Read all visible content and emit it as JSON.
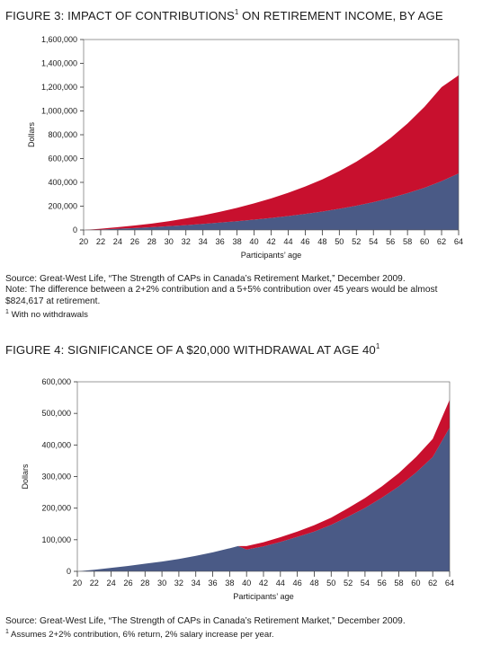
{
  "figure3": {
    "title": "FIGURE 3: IMPACT OF CONTRIBUTIONS",
    "title_sup": "1",
    "title_rest": " ON RETIREMENT INCOME, BY AGE",
    "source": "Source: Great-West Life, “The Strength of CAPs in Canada’s Retirement Market,” December 2009.",
    "note_line1": "Note: The difference between a 2+2% contribution and a 5+5% contribution over 45 years would be almost",
    "note_line2": "$824,617 at retirement.",
    "footnote_mark": "1",
    "footnote": " With no withdrawals"
  },
  "figure4": {
    "title": "FIGURE 4: SIGNIFICANCE OF A $20,000 WITHDRAWAL AT AGE 40",
    "title_sup": "1",
    "source": "Source: Great-West Life, “The Strength of CAPs in Canada’s Retirement Market,” December 2009.",
    "footnote_mark": "1",
    "footnote": " Assumes 2+2% contribution, 6% return, 2% salary increase per year."
  },
  "chart_data": [
    {
      "type": "area",
      "title": "FIGURE 3: IMPACT OF CONTRIBUTIONS ON RETIREMENT INCOME, BY AGE",
      "xlabel": "Participants’ age",
      "ylabel": "Dollars",
      "xlim": [
        20,
        64
      ],
      "ylim": [
        0,
        1600000
      ],
      "yticks": [
        0,
        200000,
        400000,
        600000,
        800000,
        1000000,
        1200000,
        1400000,
        1600000
      ],
      "ytick_labels": [
        "0",
        "200,000",
        "400,000",
        "600,000",
        "800,000",
        "1,000,000",
        "1,200,000",
        "1,400,000",
        "1,600,000"
      ],
      "xticks": [
        20,
        22,
        24,
        26,
        28,
        30,
        32,
        34,
        36,
        38,
        40,
        42,
        44,
        46,
        48,
        50,
        52,
        54,
        56,
        58,
        60,
        62,
        64
      ],
      "grid": false,
      "stacked": true,
      "x": [
        20,
        22,
        24,
        26,
        28,
        30,
        32,
        34,
        36,
        38,
        40,
        42,
        44,
        46,
        48,
        50,
        52,
        54,
        56,
        58,
        60,
        62,
        64
      ],
      "series": [
        {
          "color": "#4a5a86",
          "values": [
            0,
            4000,
            10000,
            16000,
            24000,
            32000,
            41000,
            51000,
            62000,
            74000,
            87000,
            101000,
            117000,
            135000,
            155000,
            178000,
            204000,
            234000,
            269000,
            309000,
            355000,
            410000,
            475000
          ]
        },
        {
          "color": "#c8102e",
          "values": [
            0,
            6000,
            14000,
            22000,
            30000,
            42000,
            56000,
            72000,
            91000,
            112000,
            137000,
            164000,
            195000,
            230000,
            270000,
            316000,
            370000,
            432000,
            503000,
            585000,
            680000,
            790000,
            825000
          ]
        }
      ]
    },
    {
      "type": "area",
      "title": "FIGURE 4: SIGNIFICANCE OF A $20,000 WITHDRAWAL AT AGE 40",
      "xlabel": "Participants’ age",
      "ylabel": "Dollars",
      "xlim": [
        20,
        64
      ],
      "ylim": [
        0,
        600000
      ],
      "yticks": [
        0,
        100000,
        200000,
        300000,
        400000,
        500000,
        600000
      ],
      "ytick_labels": [
        "0",
        "100,000",
        "200,000",
        "300,000",
        "400,000",
        "500,000",
        "600,000"
      ],
      "xticks": [
        20,
        22,
        24,
        26,
        28,
        30,
        32,
        34,
        36,
        38,
        40,
        42,
        44,
        46,
        48,
        50,
        52,
        54,
        56,
        58,
        60,
        62,
        64
      ],
      "grid": false,
      "stacked": true,
      "x": [
        20,
        22,
        24,
        26,
        28,
        30,
        32,
        34,
        36,
        38,
        39,
        40,
        42,
        44,
        46,
        48,
        50,
        52,
        54,
        56,
        58,
        60,
        62,
        64
      ],
      "series": [
        {
          "color": "#4a5a86",
          "values": [
            0,
            5000,
            11000,
            17000,
            24000,
            31000,
            39000,
            49000,
            60000,
            73000,
            80000,
            69000,
            79000,
            93000,
            109000,
            126000,
            147000,
            173000,
            201000,
            233000,
            269000,
            312000,
            362000,
            455000
          ]
        },
        {
          "color": "#c8102e",
          "values": [
            0,
            0,
            0,
            0,
            0,
            0,
            0,
            0,
            0,
            0,
            0,
            11000,
            13000,
            15000,
            17000,
            20000,
            23000,
            27000,
            31000,
            36000,
            42000,
            49000,
            57000,
            88000
          ]
        }
      ]
    }
  ]
}
